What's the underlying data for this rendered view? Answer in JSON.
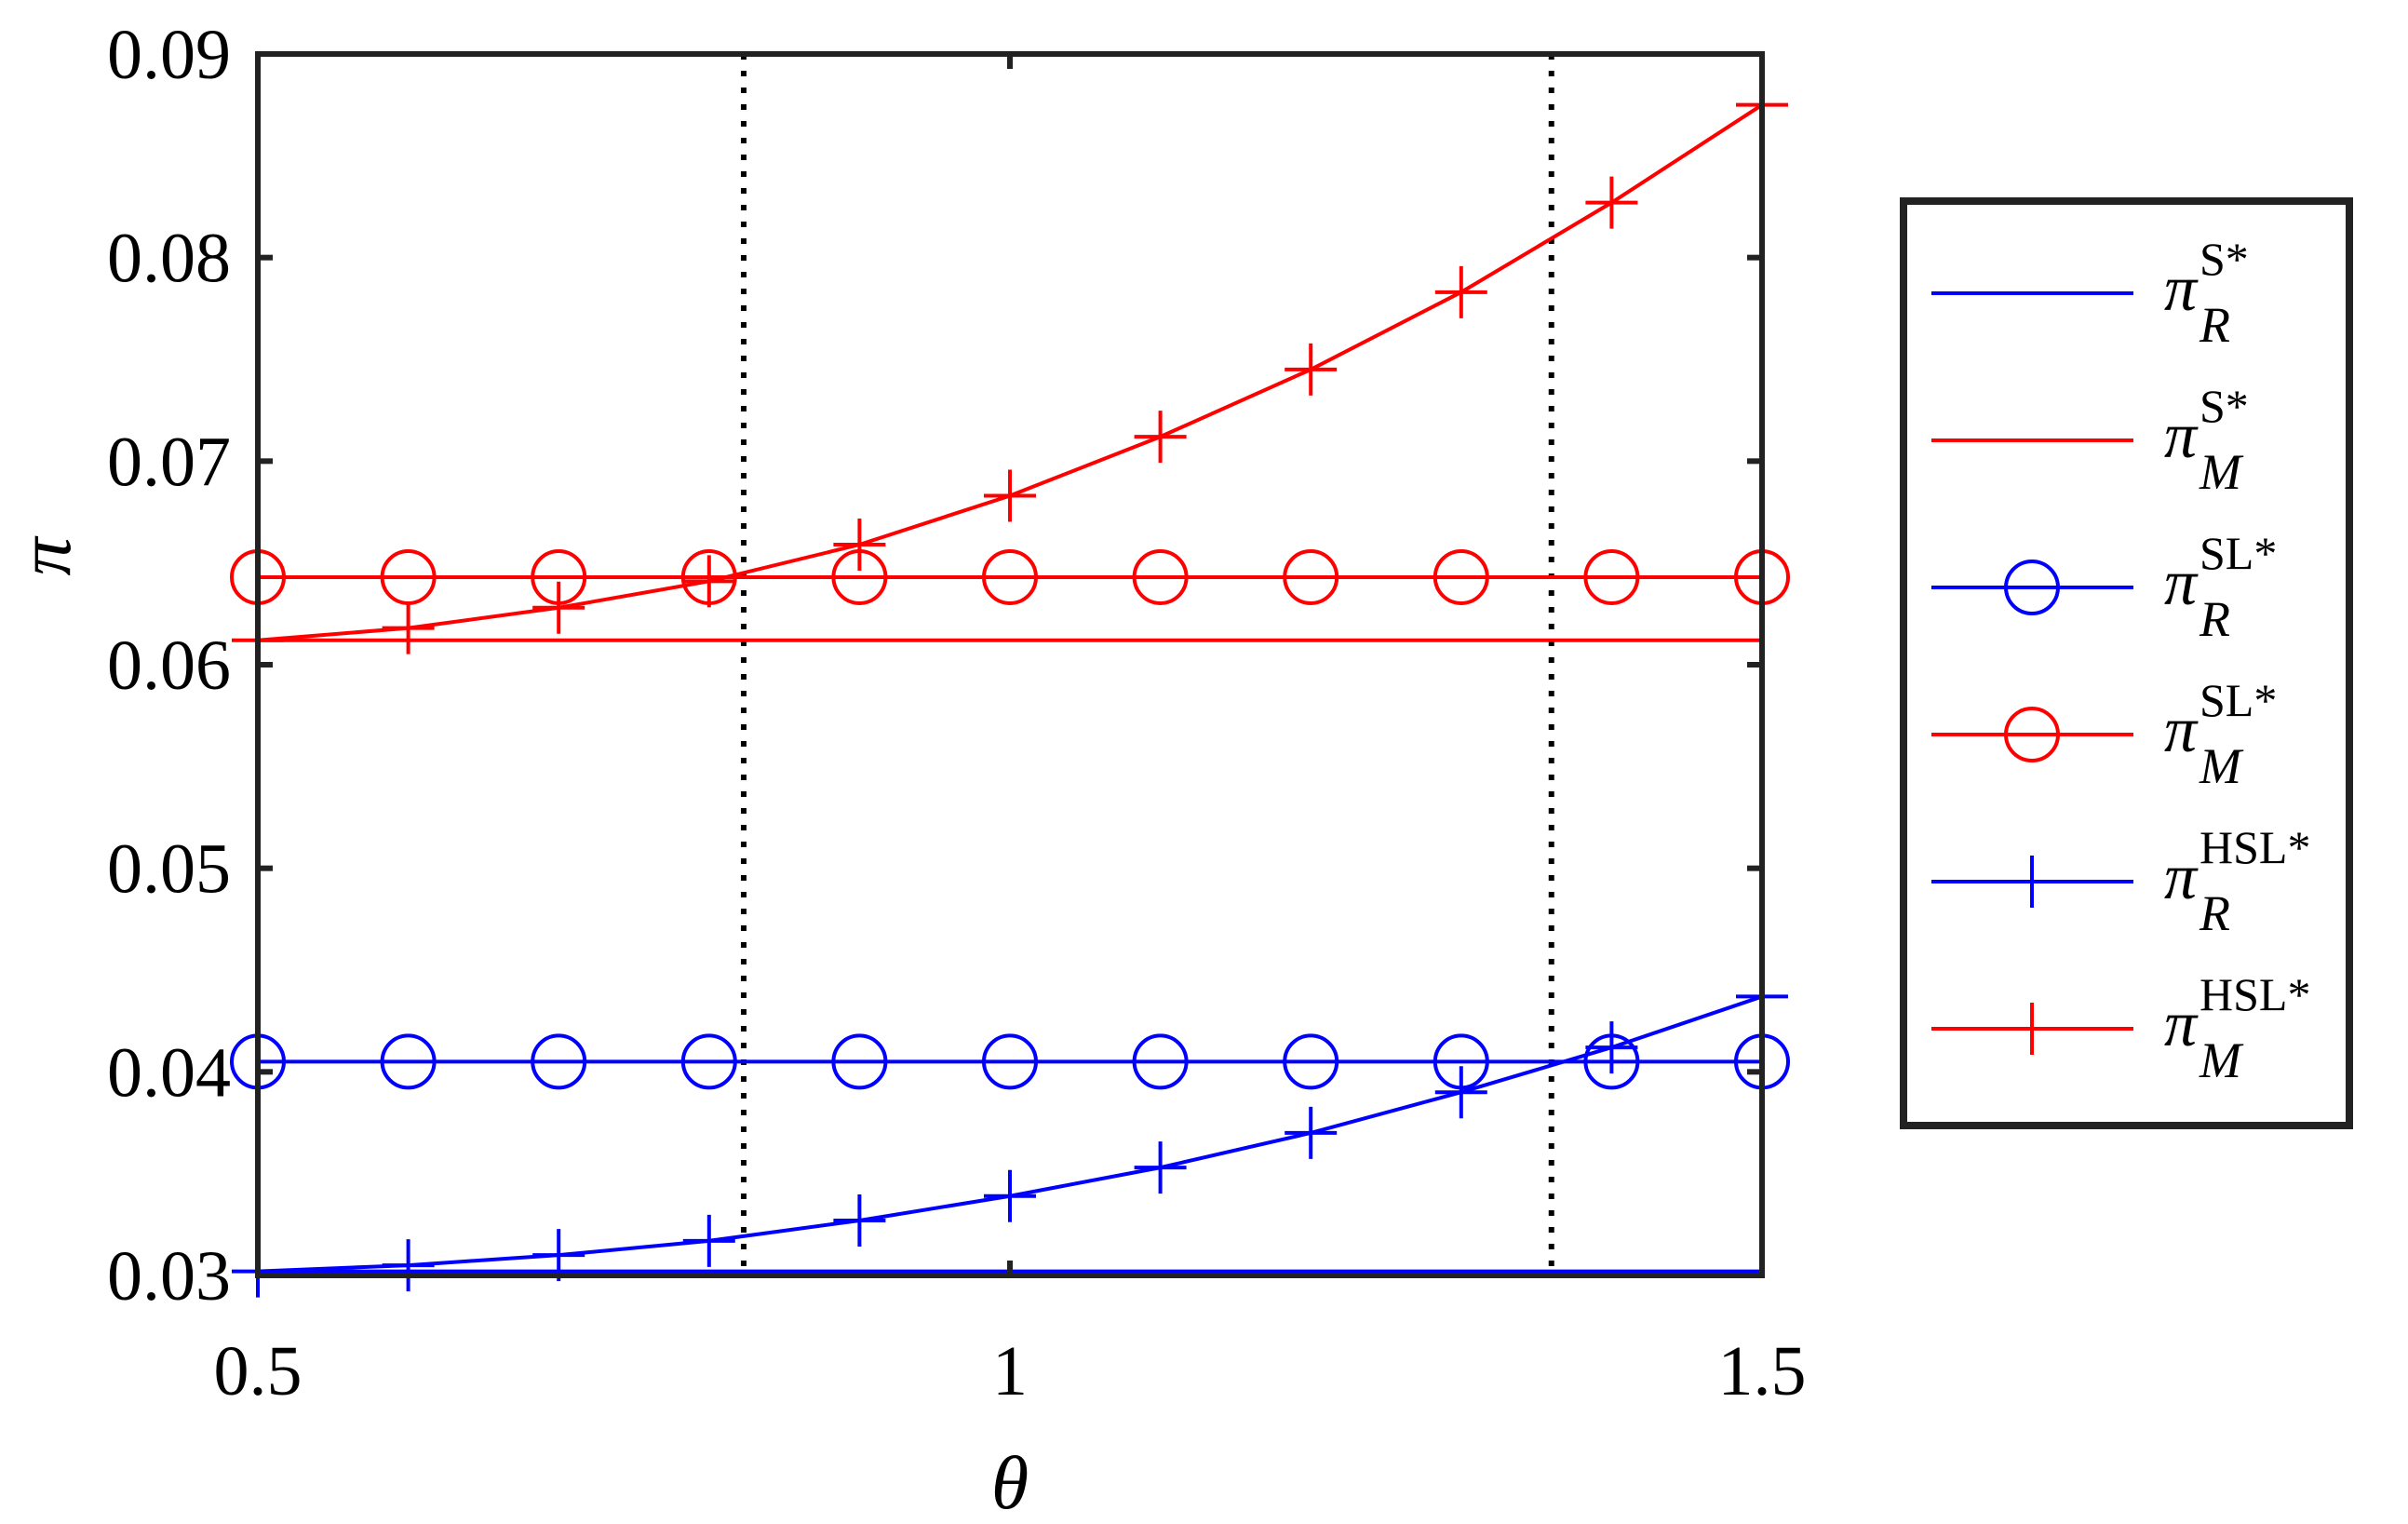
{
  "chart_data": {
    "type": "line",
    "title": "",
    "xlabel": "θ",
    "ylabel": "π",
    "xlim": [
      0.5,
      1.5
    ],
    "ylim": [
      0.03,
      0.09
    ],
    "xticks": [
      0.5,
      1,
      1.5
    ],
    "xtick_labels": [
      "0.5",
      "1",
      "1.5"
    ],
    "yticks": [
      0.03,
      0.04,
      0.05,
      0.06,
      0.07,
      0.08,
      0.09
    ],
    "ytick_labels": [
      "0.03",
      "0.04",
      "0.05",
      "0.06",
      "0.07",
      "0.08",
      "0.09"
    ],
    "grid": false,
    "legend_position": "outside-right",
    "vlines": [
      0.823,
      1.36
    ],
    "x": [
      0.5,
      0.6,
      0.7,
      0.8,
      0.9,
      1.0,
      1.1,
      1.2,
      1.3,
      1.4,
      1.5
    ],
    "series": [
      {
        "symbol": "π",
        "sup": "S*",
        "sub": "R",
        "color": "#0000ff",
        "marker": "none",
        "values": [
          0.0302,
          0.0302,
          0.0302,
          0.0302,
          0.0302,
          0.0302,
          0.0302,
          0.0302,
          0.0302,
          0.0302,
          0.0302
        ]
      },
      {
        "symbol": "π",
        "sup": "S*",
        "sub": "M",
        "color": "#ff0000",
        "marker": "none",
        "values": [
          0.0612,
          0.0612,
          0.0612,
          0.0612,
          0.0612,
          0.0612,
          0.0612,
          0.0612,
          0.0612,
          0.0612,
          0.0612
        ]
      },
      {
        "symbol": "π",
        "sup": "SL*",
        "sub": "R",
        "color": "#0000ff",
        "marker": "circle",
        "values": [
          0.0405,
          0.0405,
          0.0405,
          0.0405,
          0.0405,
          0.0405,
          0.0405,
          0.0405,
          0.0405,
          0.0405,
          0.0405
        ]
      },
      {
        "symbol": "π",
        "sup": "SL*",
        "sub": "M",
        "color": "#ff0000",
        "marker": "circle",
        "values": [
          0.0643,
          0.0643,
          0.0643,
          0.0643,
          0.0643,
          0.0643,
          0.0643,
          0.0643,
          0.0643,
          0.0643,
          0.0643
        ]
      },
      {
        "symbol": "π",
        "sup": "HSL*",
        "sub": "R",
        "color": "#0000ff",
        "marker": "plus",
        "values": [
          0.0302,
          0.0305,
          0.031,
          0.0317,
          0.0327,
          0.0339,
          0.0353,
          0.037,
          0.039,
          0.0412,
          0.0437
        ]
      },
      {
        "symbol": "π",
        "sup": "HSL*",
        "sub": "M",
        "color": "#ff0000",
        "marker": "plus",
        "values": [
          0.0612,
          0.0618,
          0.0628,
          0.0641,
          0.0659,
          0.0683,
          0.0712,
          0.0745,
          0.0783,
          0.0827,
          0.0875
        ]
      }
    ]
  }
}
